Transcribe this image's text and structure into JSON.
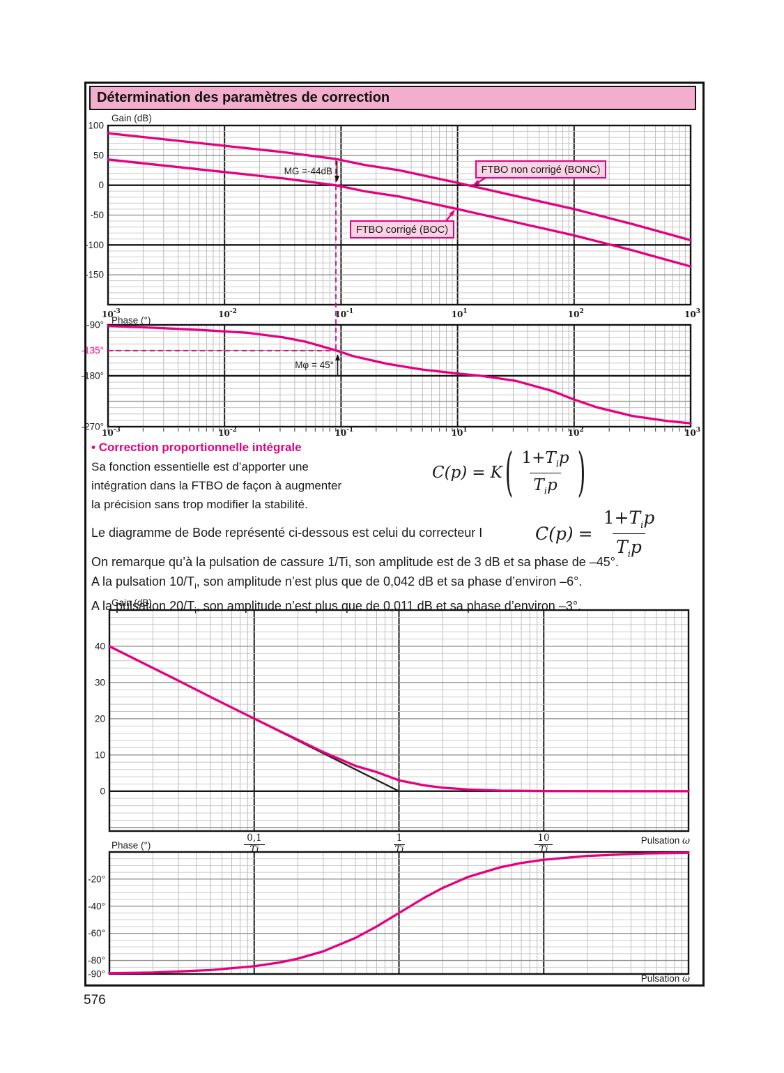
{
  "page": {
    "title": "Détermination des paramètres de correction",
    "number": "576"
  },
  "colors": {
    "magenta": "#e6007e",
    "title_bg": "#f4aecd",
    "label_box_bg": "#fbd3e4",
    "ink": "#1a1a1a"
  },
  "axis_labels": {
    "gain": "Gain (dB)",
    "phase": "Phase (°)",
    "pulsation_pre": "Pulsation ",
    "pulsation_omega": "ω"
  },
  "section_pi": {
    "bullet": "•",
    "heading": "Correction proportionnelle intégrale",
    "lines": [
      "Sa fonction essentielle est d’apporter une",
      "intégration dans la FTBO de façon à augmenter",
      " la précision sans trop modifier la stabilité."
    ]
  },
  "intro_line": "Le diagramme de Bode représenté ci-dessous est celui du correcteur I",
  "remarks": {
    "l1": "On remarque qu’à la pulsation de cassure 1/Ti, son amplitude est de 3 dB et sa phase de –45°.",
    "l2_pre": "A la pulsation 10/T",
    "l2_sub": "i",
    "l2_post": ", son amplitude n’est plus que de 0,042 dB et sa phase d’environ –6°.",
    "l3_pre": "A la pulsation 20/T",
    "l3_sub": "i",
    "l3_post": ", son amplitude n’est plus que de 0,011 dB et sa phase d’environ –3°."
  },
  "formulas": {
    "pi": {
      "lhs": "C(p)",
      "eq": "=",
      "coef": "K",
      "num_a": "1+",
      "num_T": "T",
      "num_i": "i",
      "num_p": "p",
      "den_T": "T",
      "den_i": "i",
      "den_p": "p"
    },
    "i": {
      "lhs": "C(p)",
      "eq": "=",
      "num_a": "1+",
      "num_T": "T",
      "num_i": "i",
      "num_p": "p",
      "den_T": "T",
      "den_i": "i",
      "den_p": "p"
    }
  },
  "chart_data": [
    {
      "id": "ftbo-gain",
      "type": "line",
      "ylabel": "Gain (dB)",
      "x_scale": "log",
      "x_tick_labels": [
        "10^-3",
        "10^-2",
        "10^-1",
        "10^1",
        "10^2",
        "10^3"
      ],
      "ylim": [
        -200,
        100
      ],
      "yticks": [
        [
          100,
          "100"
        ],
        [
          50,
          "50"
        ],
        [
          0,
          "0"
        ],
        [
          -50,
          "-50"
        ],
        [
          -100,
          "-100"
        ],
        [
          -150,
          "-150"
        ]
      ],
      "series": [
        {
          "name": "FTBO non corrigé (BONC)",
          "points_decade_db": [
            [
              0,
              87
            ],
            [
              0.5,
              76.5
            ],
            [
              1,
              66
            ],
            [
              1.5,
              55.5
            ],
            [
              1.955,
              44
            ],
            [
              2.2,
              34
            ],
            [
              2.5,
              25
            ],
            [
              3,
              4
            ],
            [
              3.5,
              -18
            ],
            [
              4,
              -40
            ],
            [
              4.5,
              -65
            ],
            [
              5,
              -92
            ]
          ]
        },
        {
          "name": "FTBO corrigé (BOC)",
          "points_decade_db": [
            [
              0,
              43
            ],
            [
              0.5,
              32.5
            ],
            [
              1,
              22
            ],
            [
              1.5,
              11.5
            ],
            [
              1.955,
              0
            ],
            [
              2.2,
              -10
            ],
            [
              2.5,
              -19
            ],
            [
              3,
              -40
            ],
            [
              3.5,
              -62
            ],
            [
              4,
              -84
            ],
            [
              4.5,
              -109
            ],
            [
              5,
              -136
            ]
          ]
        }
      ],
      "annotations": {
        "gain_margin_label": "MG =-44dB",
        "bonc_label": "FTBO non corrigé (BONC)",
        "boc_label": "FTBO corrigé (BOC)"
      }
    },
    {
      "id": "ftbo-phase",
      "type": "line",
      "ylabel": "Phase (°)",
      "x_scale": "log",
      "x_tick_labels": [
        "10^-3",
        "10^-2",
        "10^-1",
        "10^1",
        "10^2",
        "10^3"
      ],
      "ylim": [
        -270,
        -90
      ],
      "yticks": [
        [
          -90,
          "-90°"
        ],
        [
          -135,
          "-135°",
          "magenta"
        ],
        [
          -180,
          "-180°"
        ],
        [
          -270,
          "-270°"
        ]
      ],
      "series": [
        {
          "name": "FTBO phase",
          "points_decade_deg": [
            [
              0,
              -92
            ],
            [
              0.4,
              -95
            ],
            [
              0.8,
              -99
            ],
            [
              1.2,
              -104
            ],
            [
              1.5,
              -112
            ],
            [
              1.7,
              -120
            ],
            [
              1.955,
              -135
            ],
            [
              2.1,
              -145
            ],
            [
              2.4,
              -159
            ],
            [
              2.7,
              -169
            ],
            [
              3,
              -176
            ],
            [
              3.2,
              -180
            ],
            [
              3.5,
              -189
            ],
            [
              3.8,
              -206
            ],
            [
              4,
              -222
            ],
            [
              4.2,
              -236
            ],
            [
              4.5,
              -251
            ],
            [
              4.8,
              -260
            ],
            [
              5,
              -264
            ]
          ]
        }
      ],
      "annotations": {
        "phase_margin_label": "Mφ = 45°",
        "phase_135_tick": "-135°"
      }
    },
    {
      "id": "pi-gain",
      "type": "line",
      "ylabel": "Gain (dB)",
      "xlabel": "Pulsation ω",
      "x_scale": "log",
      "x_tick_fractions": [
        {
          "num": "0,1",
          "den": "Ti"
        },
        {
          "num": "1",
          "den": "Ti"
        },
        {
          "num": "10",
          "den": "Ti"
        }
      ],
      "ylim": [
        -11,
        50
      ],
      "yticks": [
        [
          40,
          "40"
        ],
        [
          30,
          "30"
        ],
        [
          20,
          "20"
        ],
        [
          10,
          "10"
        ],
        [
          0,
          "0"
        ]
      ],
      "series": [
        {
          "name": "asymptotes",
          "points_decade_db": [
            [
              0,
              40
            ],
            [
              2,
              0
            ],
            [
              4,
              0
            ]
          ]
        },
        {
          "name": "gain correcteur PI",
          "points_omegaTi_db": [
            [
              0.01,
              40.0
            ],
            [
              0.02,
              34.0
            ],
            [
              0.03,
              30.5
            ],
            [
              0.05,
              26.0
            ],
            [
              0.07,
              23.1
            ],
            [
              0.1,
              20.04
            ],
            [
              0.15,
              16.6
            ],
            [
              0.2,
              14.2
            ],
            [
              0.3,
              10.8
            ],
            [
              0.5,
              7.0
            ],
            [
              0.7,
              5.3
            ],
            [
              1,
              3.01
            ],
            [
              1.5,
              1.6
            ],
            [
              2,
              0.97
            ],
            [
              3,
              0.46
            ],
            [
              5,
              0.17
            ],
            [
              10,
              0.042
            ],
            [
              30,
              0.005
            ],
            [
              100,
              0.0004
            ]
          ]
        }
      ]
    },
    {
      "id": "pi-phase",
      "type": "line",
      "ylabel": "Phase (°)",
      "xlabel": "Pulsation ω",
      "x_scale": "log",
      "ylim": [
        -90,
        0
      ],
      "yticks": [
        [
          -20,
          "-20°"
        ],
        [
          -40,
          "-40°"
        ],
        [
          -60,
          "-60°"
        ],
        [
          -80,
          "-80°"
        ],
        [
          -90,
          "-90°"
        ]
      ],
      "series": [
        {
          "name": "phase correcteur PI",
          "points_omegaTi_deg": [
            [
              0.01,
              -89.4
            ],
            [
              0.02,
              -88.9
            ],
            [
              0.05,
              -87.1
            ],
            [
              0.1,
              -84.3
            ],
            [
              0.15,
              -81.5
            ],
            [
              0.2,
              -78.7
            ],
            [
              0.3,
              -73.3
            ],
            [
              0.5,
              -63.4
            ],
            [
              0.7,
              -55.0
            ],
            [
              1,
              -45
            ],
            [
              1.5,
              -33.7
            ],
            [
              2,
              -26.6
            ],
            [
              3,
              -18.4
            ],
            [
              5,
              -11.3
            ],
            [
              7,
              -8.1
            ],
            [
              10,
              -5.7
            ],
            [
              20,
              -2.9
            ],
            [
              50,
              -1.1
            ],
            [
              100,
              -0.6
            ]
          ]
        }
      ]
    }
  ]
}
